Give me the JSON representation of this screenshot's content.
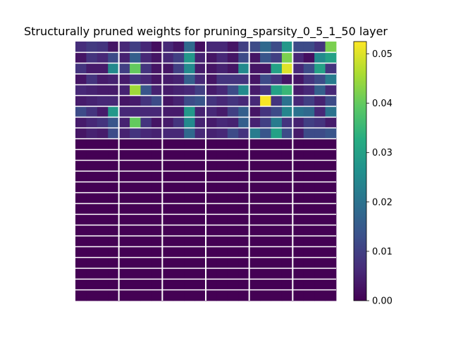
{
  "chart_data": {
    "type": "heatmap",
    "title": "Structurally pruned weights for pruning_sparsity_0_5_1_50 layer",
    "rows": 24,
    "cols": 24,
    "block_size": 4,
    "colormap": "viridis",
    "vmin": 0.0,
    "vmax": 0.0525,
    "colorbar_ticks": [
      "0.00",
      "0.01",
      "0.02",
      "0.03",
      "0.04",
      "0.05"
    ],
    "colorbar_tick_values": [
      0.0,
      0.01,
      0.02,
      0.03,
      0.04,
      0.05
    ],
    "values": [
      [
        0.007,
        0.009,
        0.008,
        0.003,
        0.006,
        0.01,
        0.006,
        0.002,
        0.006,
        0.003,
        0.018,
        0.002,
        0.006,
        0.006,
        0.003,
        0.01,
        0.012,
        0.018,
        0.012,
        0.028,
        0.012,
        0.012,
        0.008,
        0.042
      ],
      [
        0.003,
        0.008,
        0.006,
        0.012,
        0.005,
        0.016,
        0.006,
        0.003,
        0.006,
        0.01,
        0.028,
        0.005,
        0.003,
        0.006,
        0.003,
        0.012,
        0.003,
        0.014,
        0.01,
        0.042,
        0.006,
        0.002,
        0.025,
        0.03
      ],
      [
        0.008,
        0.004,
        0.004,
        0.025,
        0.01,
        0.04,
        0.008,
        0.003,
        0.003,
        0.01,
        0.025,
        0.004,
        0.003,
        0.005,
        0.003,
        0.025,
        0.003,
        0.003,
        0.03,
        0.05,
        0.006,
        0.012,
        0.03,
        0.008
      ],
      [
        0.003,
        0.008,
        0.004,
        0.005,
        0.004,
        0.008,
        0.006,
        0.003,
        0.004,
        0.005,
        0.016,
        0.006,
        0.003,
        0.008,
        0.008,
        0.008,
        0.003,
        0.012,
        0.008,
        0.003,
        0.003,
        0.008,
        0.012,
        0.022
      ],
      [
        0.006,
        0.005,
        0.004,
        0.004,
        0.005,
        0.045,
        0.014,
        0.005,
        0.004,
        0.005,
        0.006,
        0.01,
        0.004,
        0.006,
        0.012,
        0.025,
        0.004,
        0.008,
        0.03,
        0.035,
        0.004,
        0.006,
        0.016,
        0.006
      ],
      [
        0.004,
        0.005,
        0.006,
        0.006,
        0.003,
        0.004,
        0.008,
        0.012,
        0.003,
        0.005,
        0.012,
        0.014,
        0.008,
        0.006,
        0.008,
        0.006,
        0.006,
        0.052,
        0.008,
        0.02,
        0.006,
        0.01,
        0.005,
        0.012
      ],
      [
        0.012,
        0.008,
        0.004,
        0.028,
        0.006,
        0.006,
        0.006,
        0.006,
        0.004,
        0.004,
        0.028,
        0.005,
        0.006,
        0.004,
        0.01,
        0.016,
        0.003,
        0.008,
        0.012,
        0.024,
        0.02,
        0.018,
        0.006,
        0.02
      ],
      [
        0.004,
        0.006,
        0.008,
        0.014,
        0.005,
        0.04,
        0.008,
        0.003,
        0.004,
        0.008,
        0.025,
        0.005,
        0.004,
        0.006,
        0.005,
        0.016,
        0.005,
        0.01,
        0.022,
        0.008,
        0.005,
        0.01,
        0.008,
        0.004
      ],
      [
        0.003,
        0.005,
        0.004,
        0.012,
        0.005,
        0.008,
        0.006,
        0.005,
        0.006,
        0.006,
        0.018,
        0.006,
        0.005,
        0.006,
        0.012,
        0.008,
        0.022,
        0.014,
        0.03,
        0.012,
        0.004,
        0.012,
        0.012,
        0.014
      ],
      [
        0,
        0,
        0,
        0,
        0,
        0,
        0,
        0,
        0,
        0,
        0,
        0,
        0,
        0,
        0,
        0,
        0,
        0,
        0,
        0,
        0,
        0,
        0,
        0
      ],
      [
        0,
        0,
        0,
        0,
        0,
        0,
        0,
        0,
        0,
        0,
        0,
        0,
        0,
        0,
        0,
        0,
        0,
        0,
        0,
        0,
        0,
        0,
        0,
        0
      ],
      [
        0,
        0,
        0,
        0,
        0,
        0,
        0,
        0,
        0,
        0,
        0,
        0,
        0,
        0,
        0,
        0,
        0,
        0,
        0,
        0,
        0,
        0,
        0,
        0
      ],
      [
        0,
        0,
        0,
        0,
        0,
        0,
        0,
        0,
        0,
        0,
        0,
        0,
        0,
        0,
        0,
        0,
        0,
        0,
        0,
        0,
        0,
        0,
        0,
        0
      ],
      [
        0,
        0,
        0,
        0,
        0,
        0,
        0,
        0,
        0,
        0,
        0,
        0,
        0,
        0,
        0,
        0,
        0,
        0,
        0,
        0,
        0,
        0,
        0,
        0
      ],
      [
        0,
        0,
        0,
        0,
        0,
        0,
        0,
        0,
        0,
        0,
        0,
        0,
        0,
        0,
        0,
        0,
        0,
        0,
        0,
        0,
        0,
        0,
        0,
        0
      ],
      [
        0,
        0,
        0,
        0,
        0,
        0,
        0,
        0,
        0,
        0,
        0,
        0,
        0,
        0,
        0,
        0,
        0,
        0,
        0,
        0,
        0,
        0,
        0,
        0
      ],
      [
        0,
        0,
        0,
        0,
        0,
        0,
        0,
        0,
        0,
        0,
        0,
        0,
        0,
        0,
        0,
        0,
        0,
        0,
        0,
        0,
        0,
        0,
        0,
        0
      ],
      [
        0,
        0,
        0,
        0,
        0,
        0,
        0,
        0,
        0,
        0,
        0,
        0,
        0,
        0,
        0,
        0,
        0,
        0,
        0,
        0,
        0,
        0,
        0,
        0
      ],
      [
        0,
        0,
        0,
        0,
        0,
        0,
        0,
        0,
        0,
        0,
        0,
        0,
        0,
        0,
        0,
        0,
        0,
        0,
        0,
        0,
        0,
        0,
        0,
        0
      ],
      [
        0,
        0,
        0,
        0,
        0,
        0,
        0,
        0,
        0,
        0,
        0,
        0,
        0,
        0,
        0,
        0,
        0,
        0,
        0,
        0,
        0,
        0,
        0,
        0
      ],
      [
        0,
        0,
        0,
        0,
        0,
        0,
        0,
        0,
        0,
        0,
        0,
        0,
        0,
        0,
        0,
        0,
        0,
        0,
        0,
        0,
        0,
        0,
        0,
        0
      ],
      [
        0,
        0,
        0,
        0,
        0,
        0,
        0,
        0,
        0,
        0,
        0,
        0,
        0,
        0,
        0,
        0,
        0,
        0,
        0,
        0,
        0,
        0,
        0,
        0
      ],
      [
        0,
        0,
        0,
        0,
        0,
        0,
        0,
        0,
        0,
        0,
        0,
        0,
        0,
        0,
        0,
        0,
        0,
        0,
        0,
        0,
        0,
        0,
        0,
        0
      ],
      [
        0,
        0,
        0,
        0,
        0,
        0,
        0,
        0,
        0,
        0,
        0,
        0,
        0,
        0,
        0,
        0,
        0,
        0,
        0,
        0,
        0,
        0,
        0,
        0
      ]
    ]
  }
}
